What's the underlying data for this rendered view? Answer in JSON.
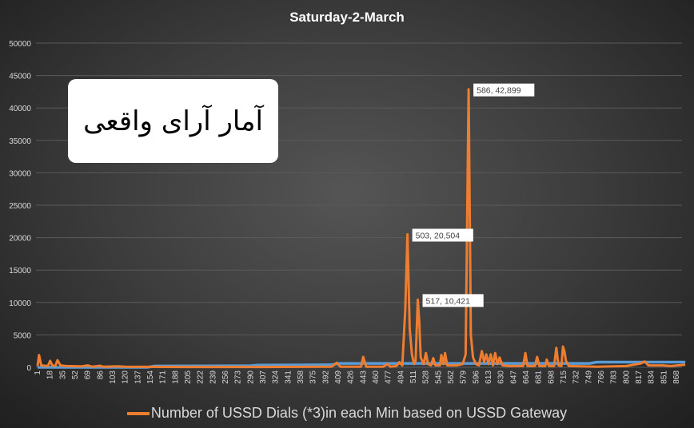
{
  "chart_data": {
    "type": "line",
    "title": "Saturday-2-March",
    "ylim": [
      0,
      50000
    ],
    "y_ticks": [
      0,
      5000,
      10000,
      15000,
      20000,
      25000,
      30000,
      35000,
      40000,
      45000,
      50000
    ],
    "x_tick_labels": [
      "1",
      "18",
      "35",
      "52",
      "69",
      "86",
      "103",
      "120",
      "137",
      "154",
      "171",
      "188",
      "205",
      "222",
      "239",
      "256",
      "273",
      "290",
      "307",
      "324",
      "341",
      "358",
      "375",
      "392",
      "409",
      "426",
      "443",
      "460",
      "477",
      "494",
      "511",
      "528",
      "545",
      "562",
      "579",
      "596",
      "613",
      "630",
      "647",
      "664",
      "681",
      "698",
      "715",
      "732",
      "749",
      "766",
      "783",
      "800",
      "817",
      "834",
      "851",
      "868"
    ],
    "grid": "horizontal",
    "legend_position": "bottom",
    "annotation_text": "آمار آرای واقعی",
    "series": [
      {
        "name": "Number of USSD Dials  (*3)in each Min based on USSD Gateway",
        "color": "#ED7D31",
        "points": [
          [
            1,
            200
          ],
          [
            3,
            1900
          ],
          [
            6,
            300
          ],
          [
            15,
            200
          ],
          [
            18,
            1000
          ],
          [
            21,
            300
          ],
          [
            25,
            200
          ],
          [
            28,
            1100
          ],
          [
            32,
            300
          ],
          [
            40,
            200
          ],
          [
            60,
            150
          ],
          [
            69,
            300
          ],
          [
            75,
            100
          ],
          [
            86,
            250
          ],
          [
            90,
            100
          ],
          [
            110,
            150
          ],
          [
            120,
            100
          ],
          [
            200,
            50
          ],
          [
            300,
            50
          ],
          [
            400,
            100
          ],
          [
            407,
            700
          ],
          [
            412,
            100
          ],
          [
            440,
            100
          ],
          [
            443,
            1600
          ],
          [
            447,
            100
          ],
          [
            470,
            100
          ],
          [
            476,
            500
          ],
          [
            480,
            100
          ],
          [
            488,
            200
          ],
          [
            492,
            800
          ],
          [
            496,
            300
          ],
          [
            500,
            9000
          ],
          [
            503,
            20504
          ],
          [
            506,
            6000
          ],
          [
            509,
            2000
          ],
          [
            512,
            500
          ],
          [
            514,
            1000
          ],
          [
            517,
            10421
          ],
          [
            519,
            7000
          ],
          [
            521,
            1500
          ],
          [
            525,
            500
          ],
          [
            528,
            2200
          ],
          [
            531,
            500
          ],
          [
            535,
            300
          ],
          [
            538,
            1400
          ],
          [
            541,
            300
          ],
          [
            547,
            300
          ],
          [
            549,
            1900
          ],
          [
            552,
            500
          ],
          [
            554,
            2200
          ],
          [
            557,
            300
          ],
          [
            570,
            300
          ],
          [
            578,
            500
          ],
          [
            582,
            2000
          ],
          [
            586,
            42899
          ],
          [
            589,
            5000
          ],
          [
            592,
            1500
          ],
          [
            596,
            500
          ],
          [
            600,
            300
          ],
          [
            604,
            2500
          ],
          [
            607,
            800
          ],
          [
            610,
            2000
          ],
          [
            613,
            500
          ],
          [
            616,
            2000
          ],
          [
            619,
            300
          ],
          [
            622,
            2200
          ],
          [
            625,
            500
          ],
          [
            628,
            1500
          ],
          [
            632,
            300
          ],
          [
            640,
            200
          ],
          [
            660,
            200
          ],
          [
            663,
            2200
          ],
          [
            666,
            200
          ],
          [
            676,
            200
          ],
          [
            679,
            1600
          ],
          [
            682,
            200
          ],
          [
            690,
            200
          ],
          [
            692,
            1200
          ],
          [
            695,
            200
          ],
          [
            702,
            200
          ],
          [
            705,
            3000
          ],
          [
            708,
            300
          ],
          [
            712,
            200
          ],
          [
            714,
            3200
          ],
          [
            716,
            2500
          ],
          [
            718,
            1000
          ],
          [
            722,
            200
          ],
          [
            760,
            100
          ],
          [
            800,
            200
          ],
          [
            820,
            600
          ],
          [
            825,
            900
          ],
          [
            830,
            300
          ],
          [
            850,
            300
          ],
          [
            860,
            200
          ],
          [
            880,
            400
          ]
        ]
      },
      {
        "color": "#5B9BD5",
        "points": [
          [
            1,
            0
          ],
          [
            150,
            0
          ],
          [
            160,
            200
          ],
          [
            290,
            250
          ],
          [
            300,
            350
          ],
          [
            400,
            400
          ],
          [
            410,
            600
          ],
          [
            750,
            600
          ],
          [
            760,
            800
          ],
          [
            880,
            800
          ]
        ]
      }
    ],
    "data_labels": [
      {
        "x": 586,
        "y": 42899,
        "text": "586, 42,899"
      },
      {
        "x": 503,
        "y": 20504,
        "text": "503, 20,504"
      },
      {
        "x": 517,
        "y": 10421,
        "text": "517, 10,421"
      }
    ]
  }
}
